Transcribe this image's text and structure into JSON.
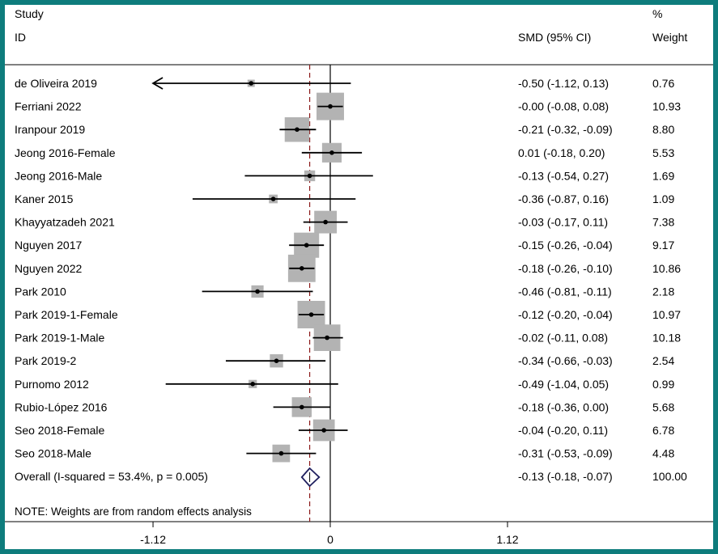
{
  "chart_data": {
    "type": "forest",
    "header": {
      "study": "Study",
      "id": "ID",
      "effect": "SMD (95% CI)",
      "pct": "%",
      "weight": "Weight"
    },
    "studies": [
      {
        "name": "de Oliveira 2019",
        "smd": -0.5,
        "lower": -1.12,
        "upper": 0.13,
        "weight": 0.76,
        "ci_text": "-0.50 (-1.12, 0.13)",
        "weight_text": "0.76",
        "arrow_left": true
      },
      {
        "name": "Ferriani 2022",
        "smd": -0.0,
        "lower": -0.08,
        "upper": 0.08,
        "weight": 10.93,
        "ci_text": "-0.00 (-0.08, 0.08)",
        "weight_text": "10.93"
      },
      {
        "name": "Iranpour 2019",
        "smd": -0.21,
        "lower": -0.32,
        "upper": -0.09,
        "weight": 8.8,
        "ci_text": "-0.21 (-0.32, -0.09)",
        "weight_text": "8.80"
      },
      {
        "name": "Jeong 2016-Female",
        "smd": 0.01,
        "lower": -0.18,
        "upper": 0.2,
        "weight": 5.53,
        "ci_text": "0.01 (-0.18, 0.20)",
        "weight_text": "5.53"
      },
      {
        "name": "Jeong 2016-Male",
        "smd": -0.13,
        "lower": -0.54,
        "upper": 0.27,
        "weight": 1.69,
        "ci_text": "-0.13 (-0.54, 0.27)",
        "weight_text": "1.69"
      },
      {
        "name": "Kaner 2015",
        "smd": -0.36,
        "lower": -0.87,
        "upper": 0.16,
        "weight": 1.09,
        "ci_text": "-0.36 (-0.87, 0.16)",
        "weight_text": "1.09"
      },
      {
        "name": "Khayyatzadeh 2021",
        "smd": -0.03,
        "lower": -0.17,
        "upper": 0.11,
        "weight": 7.38,
        "ci_text": "-0.03 (-0.17, 0.11)",
        "weight_text": "7.38"
      },
      {
        "name": "Nguyen 2017",
        "smd": -0.15,
        "lower": -0.26,
        "upper": -0.04,
        "weight": 9.17,
        "ci_text": "-0.15 (-0.26, -0.04)",
        "weight_text": "9.17"
      },
      {
        "name": "Nguyen 2022",
        "smd": -0.18,
        "lower": -0.26,
        "upper": -0.1,
        "weight": 10.86,
        "ci_text": "-0.18 (-0.26, -0.10)",
        "weight_text": "10.86"
      },
      {
        "name": "Park 2010",
        "smd": -0.46,
        "lower": -0.81,
        "upper": -0.11,
        "weight": 2.18,
        "ci_text": "-0.46 (-0.81, -0.11)",
        "weight_text": "2.18"
      },
      {
        "name": "Park 2019-1-Female",
        "smd": -0.12,
        "lower": -0.2,
        "upper": -0.04,
        "weight": 10.97,
        "ci_text": "-0.12 (-0.20, -0.04)",
        "weight_text": "10.97"
      },
      {
        "name": "Park 2019-1-Male",
        "smd": -0.02,
        "lower": -0.11,
        "upper": 0.08,
        "weight": 10.18,
        "ci_text": "-0.02 (-0.11, 0.08)",
        "weight_text": "10.18"
      },
      {
        "name": "Park 2019-2",
        "smd": -0.34,
        "lower": -0.66,
        "upper": -0.03,
        "weight": 2.54,
        "ci_text": "-0.34 (-0.66, -0.03)",
        "weight_text": "2.54"
      },
      {
        "name": "Purnomo 2012",
        "smd": -0.49,
        "lower": -1.04,
        "upper": 0.05,
        "weight": 0.99,
        "ci_text": "-0.49 (-1.04, 0.05)",
        "weight_text": "0.99"
      },
      {
        "name": "Rubio-López 2016",
        "smd": -0.18,
        "lower": -0.36,
        "upper": 0.0,
        "weight": 5.68,
        "ci_text": "-0.18 (-0.36, 0.00)",
        "weight_text": "5.68"
      },
      {
        "name": "Seo 2018-Female",
        "smd": -0.04,
        "lower": -0.2,
        "upper": 0.11,
        "weight": 6.78,
        "ci_text": "-0.04 (-0.20, 0.11)",
        "weight_text": "6.78"
      },
      {
        "name": "Seo 2018-Male",
        "smd": -0.31,
        "lower": -0.53,
        "upper": -0.09,
        "weight": 4.48,
        "ci_text": "-0.31 (-0.53, -0.09)",
        "weight_text": "4.48"
      }
    ],
    "overall": {
      "label": "Overall  (I-squared = 53.4%, p = 0.005)",
      "smd": -0.13,
      "lower": -0.18,
      "upper": -0.07,
      "ci_text": "-0.13 (-0.18, -0.07)",
      "weight_text": "100.00"
    },
    "note": "NOTE: Weights are from random effects analysis",
    "x_ticks": [
      {
        "value": -1.12,
        "label": "-1.12"
      },
      {
        "value": 0,
        "label": "0"
      },
      {
        "value": 1.12,
        "label": "1.12"
      }
    ],
    "xlim": [
      -1.12,
      1.12
    ],
    "colors": {
      "frame": "#0e7c7c",
      "box": "#b3b3b3",
      "line": "#000000",
      "overall_line": "#8b1a1a",
      "diamond": "#1f1f5e"
    }
  }
}
